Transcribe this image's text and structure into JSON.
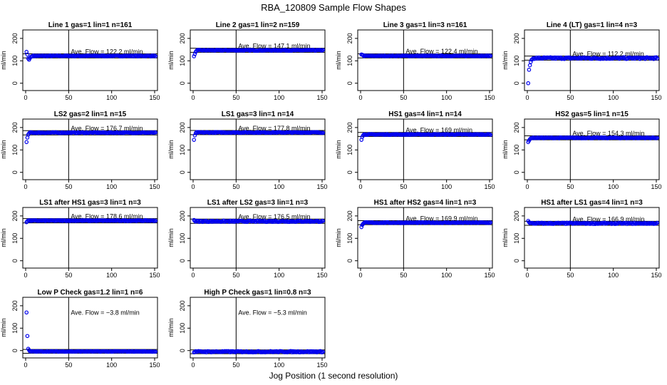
{
  "figure": {
    "title": "RBA_120809  Sample Flow Shapes",
    "xlabel": "Jog Position (1 second resolution)",
    "ylabel": "ml/min",
    "xticks": [
      0,
      50,
      100,
      150
    ],
    "yticks": [
      0,
      100,
      200
    ],
    "colors": {
      "points": "#0000ee",
      "frame": "#000000"
    }
  },
  "chart_data": [
    {
      "type": "scatter",
      "title": "Line 1 gas=1 lin=1 n=161",
      "annotation": "Ave. Flow =  122.2  ml/min",
      "mean": 122.2,
      "band": [
        113,
        131
      ],
      "xlim": [
        0,
        150
      ],
      "ylim": [
        0,
        200
      ],
      "series": [
        {
          "shape": "startdip",
          "start": [
            140,
            128,
            110,
            105,
            112,
            118,
            120
          ],
          "value": 122,
          "noise": 2
        }
      ]
    },
    {
      "type": "scatter",
      "title": "Line 2 gas=1 lin=2 n=159",
      "annotation": "Ave. Flow =  147.1  ml/min",
      "mean": 147.1,
      "band": [
        138,
        156
      ],
      "xlim": [
        0,
        150
      ],
      "ylim": [
        0,
        200
      ],
      "series": [
        {
          "shape": "startdip",
          "start": [
            120,
            130,
            140,
            145
          ],
          "value": 147,
          "noise": 2
        }
      ]
    },
    {
      "type": "scatter",
      "title": "Line 3 gas=1 lin=3 n=161",
      "annotation": "Ave. Flow =  122.4  ml/min",
      "mean": 122.4,
      "band": [
        113,
        131
      ],
      "xlim": [
        0,
        150
      ],
      "ylim": [
        0,
        200
      ],
      "series": [
        {
          "shape": "startdip",
          "start": [
            128,
            127,
            125
          ],
          "value": 122,
          "noise": 1.5
        }
      ]
    },
    {
      "type": "scatter",
      "title": "Line 4 (LT) gas=1 lin=4 n=3",
      "annotation": "Ave. Flow =  112.2  ml/min",
      "mean": 112.2,
      "band": [
        103,
        121
      ],
      "xlim": [
        0,
        150
      ],
      "ylim": [
        0,
        200
      ],
      "series": [
        {
          "shape": "startdip",
          "start": [
            0,
            60,
            80,
            95,
            105,
            108
          ],
          "value": 112,
          "noise": 4
        }
      ]
    },
    {
      "type": "scatter",
      "title": "LS2 gas=2 lin=1 n=15",
      "annotation": "Ave. Flow =  176.7  ml/min",
      "mean": 176.7,
      "band": [
        167,
        186
      ],
      "xlim": [
        0,
        150
      ],
      "ylim": [
        0,
        200
      ],
      "series": [
        {
          "shape": "startdip",
          "start": [
            135,
            155,
            168,
            174
          ],
          "value": 177,
          "noise": 2
        }
      ]
    },
    {
      "type": "scatter",
      "title": "LS1 gas=3 lin=1 n=14",
      "annotation": "Ave. Flow =  177.8  ml/min",
      "mean": 177.8,
      "band": [
        168,
        187
      ],
      "xlim": [
        0,
        150
      ],
      "ylim": [
        0,
        200
      ],
      "series": [
        {
          "shape": "startdip",
          "start": [
            145,
            165,
            175
          ],
          "value": 178,
          "noise": 2
        }
      ]
    },
    {
      "type": "scatter",
      "title": "HS1 gas=4 lin=1 n=14",
      "annotation": "Ave. Flow =  169  ml/min",
      "mean": 169,
      "band": [
        160,
        178
      ],
      "xlim": [
        0,
        150
      ],
      "ylim": [
        0,
        200
      ],
      "series": [
        {
          "shape": "startdip",
          "start": [
            145,
            158,
            165
          ],
          "value": 169,
          "noise": 2
        }
      ]
    },
    {
      "type": "scatter",
      "title": "HS2 gas=5 lin=1 n=15",
      "annotation": "Ave. Flow =  154.3  ml/min",
      "mean": 154.3,
      "band": [
        145,
        163
      ],
      "xlim": [
        0,
        150
      ],
      "ylim": [
        0,
        200
      ],
      "series": [
        {
          "shape": "startdip",
          "start": [
            135,
            142,
            148,
            152
          ],
          "value": 154,
          "noise": 2
        }
      ]
    },
    {
      "type": "scatter",
      "title": "LS1 after HS1 gas=3 lin=1 n=3",
      "annotation": "Ave. Flow =  178.6  ml/min",
      "mean": 178.6,
      "band": [
        169,
        188
      ],
      "xlim": [
        0,
        150
      ],
      "ylim": [
        0,
        200
      ],
      "series": [
        {
          "shape": "startdip",
          "start": [
            172,
            176
          ],
          "value": 179,
          "noise": 2
        }
      ]
    },
    {
      "type": "scatter",
      "title": "LS1 after LS2 gas=3 lin=1 n=3",
      "annotation": "Ave. Flow =  176.5  ml/min",
      "mean": 176.5,
      "band": [
        167,
        186
      ],
      "xlim": [
        0,
        150
      ],
      "ylim": [
        0,
        200
      ],
      "series": [
        {
          "shape": "startdip",
          "start": [
            182,
            178
          ],
          "value": 176,
          "noise": 3
        }
      ]
    },
    {
      "type": "scatter",
      "title": "HS1 after HS2 gas=4 lin=1 n=3",
      "annotation": "Ave. Flow =  169.9  ml/min",
      "mean": 169.9,
      "band": [
        161,
        179
      ],
      "xlim": [
        0,
        150
      ],
      "ylim": [
        0,
        200
      ],
      "series": [
        {
          "shape": "startdip",
          "start": [
            150,
            160,
            165
          ],
          "value": 170,
          "noise": 2
        }
      ]
    },
    {
      "type": "scatter",
      "title": "HS1 after LS1 gas=4 lin=1 n=3",
      "annotation": "Ave. Flow =  166.9  ml/min",
      "mean": 166.9,
      "band": [
        158,
        176
      ],
      "xlim": [
        0,
        150
      ],
      "ylim": [
        0,
        200
      ],
      "series": [
        {
          "shape": "startdip",
          "start": [
            178,
            172,
            168
          ],
          "value": 167,
          "noise": 3
        }
      ]
    },
    {
      "type": "scatter",
      "title": "Low P Check gas=1.2 lin=1 n=6",
      "annotation": "Ave. Flow =  −3.8  ml/min",
      "mean": -3.8,
      "band": [
        -12,
        5
      ],
      "xlim": [
        0,
        150
      ],
      "ylim": [
        0,
        200
      ],
      "series": [
        {
          "shape": "startdip",
          "start": [
            170,
            65,
            8,
            2
          ],
          "value": -4,
          "noise": 1.5
        }
      ]
    },
    {
      "type": "scatter",
      "title": "High P Check gas=1 lin=0.8 n=3",
      "annotation": "Ave. Flow =  −5.3  ml/min",
      "mean": -5.3,
      "band": [
        -14,
        3
      ],
      "xlim": [
        0,
        150
      ],
      "ylim": [
        0,
        200
      ],
      "series": [
        {
          "shape": "startdip",
          "start": [
            -8,
            -6
          ],
          "value": -5,
          "noise": 3
        }
      ]
    }
  ]
}
